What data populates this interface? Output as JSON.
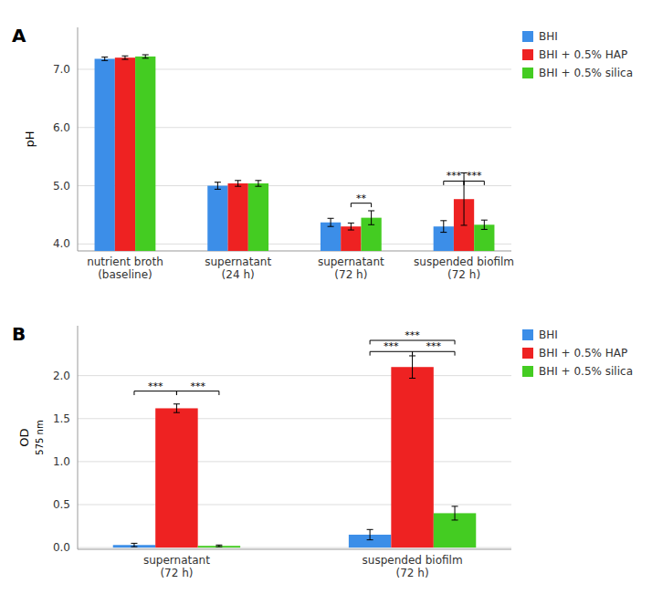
{
  "chart_data": [
    {
      "type": "bar",
      "title": "A",
      "ylabel": "pH",
      "categories": [
        "nutrient broth\n(baseline)",
        "supernatant\n(24 h)",
        "supernatant\n(72 h)",
        "suspended biofilm\n(72 h)"
      ],
      "series": [
        {
          "name": "BHI",
          "color": "#3C8EE8",
          "values": [
            7.18,
            5.0,
            4.37,
            4.3
          ],
          "errors": [
            0.03,
            0.06,
            0.07,
            0.1
          ]
        },
        {
          "name": "BHI + 0.5% HAP",
          "color": "#EE2222",
          "values": [
            7.2,
            5.04,
            4.3,
            4.77
          ],
          "errors": [
            0.03,
            0.05,
            0.06,
            0.45
          ]
        },
        {
          "name": "BHI + 0.5% silica",
          "color": "#44CC22",
          "values": [
            7.22,
            5.04,
            4.45,
            4.33
          ],
          "errors": [
            0.03,
            0.05,
            0.12,
            0.08
          ]
        }
      ],
      "ylim": [
        3.88,
        7.72
      ],
      "yticks": [
        {
          "value": 4.0,
          "label": "4.0"
        },
        {
          "value": 5.0,
          "label": "5.0"
        },
        {
          "value": 6.0,
          "label": "6.0"
        },
        {
          "value": 7.0,
          "label": "7.0"
        }
      ],
      "grid": true,
      "legend": "right",
      "annotations": [
        {
          "text": "**",
          "y": 4.7,
          "category": "supernatant\n(72 h)",
          "from": "BHI + 0.5% HAP",
          "to": "BHI + 0.5% silica"
        },
        {
          "text": "***",
          "y": 5.08,
          "category": "suspended biofilm\n(72 h)",
          "from": "BHI",
          "to": "BHI + 0.5% HAP"
        },
        {
          "text": "***",
          "y": 5.08,
          "category": "suspended biofilm\n(72 h)",
          "from": "BHI + 0.5% HAP",
          "to": "BHI + 0.5% silica"
        }
      ]
    },
    {
      "type": "bar",
      "title": "B",
      "ylabel": "OD",
      "ylabel_sub": "575 nm",
      "categories": [
        "supernatant\n(72 h)",
        "suspended biofilm\n(72 h)"
      ],
      "series": [
        {
          "name": "BHI",
          "color": "#3C8EE8",
          "values": [
            0.03,
            0.15
          ],
          "errors": [
            0.02,
            0.06
          ]
        },
        {
          "name": "BHI + 0.5% HAP",
          "color": "#EE2222",
          "values": [
            1.62,
            2.1
          ],
          "errors": [
            0.05,
            0.13
          ]
        },
        {
          "name": "BHI + 0.5% silica",
          "color": "#44CC22",
          "values": [
            0.02,
            0.4
          ],
          "errors": [
            0.01,
            0.08
          ]
        }
      ],
      "ylim": [
        -0.02,
        2.58
      ],
      "yticks": [
        {
          "value": 0.0,
          "label": "0.0"
        },
        0.5,
        {
          "value": 1.0,
          "label": "1.0"
        },
        1.5,
        {
          "value": 2.0,
          "label": "2.0"
        }
      ],
      "grid": true,
      "legend": "right",
      "annotations": [
        {
          "text": "***",
          "y": 1.82,
          "category": "supernatant\n(72 h)",
          "from": "BHI",
          "to": "BHI + 0.5% HAP"
        },
        {
          "text": "***",
          "y": 1.82,
          "category": "supernatant\n(72 h)",
          "from": "BHI + 0.5% HAP",
          "to": "BHI + 0.5% silica"
        },
        {
          "text": "***",
          "y": 2.28,
          "category": "suspended biofilm\n(72 h)",
          "from": "BHI",
          "to": "BHI + 0.5% HAP"
        },
        {
          "text": "***",
          "y": 2.28,
          "category": "suspended biofilm\n(72 h)",
          "from": "BHI + 0.5% HAP",
          "to": "BHI + 0.5% silica"
        },
        {
          "text": "***",
          "y": 2.41,
          "category": "suspended biofilm\n(72 h)",
          "from": "BHI",
          "to": "BHI + 0.5% silica"
        }
      ]
    }
  ]
}
